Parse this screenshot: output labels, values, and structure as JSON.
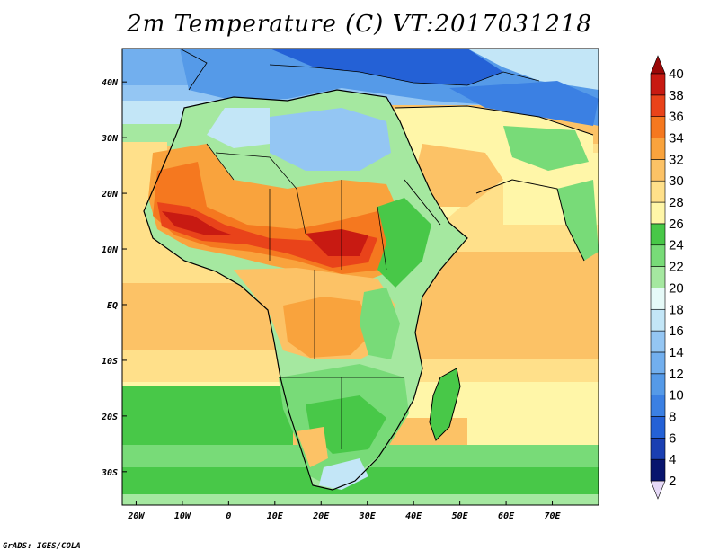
{
  "title": "2m Temperature (C) VT:2017031218",
  "credit": "GrADS: IGES/COLA",
  "map": {
    "lon_range": [
      -23,
      80
    ],
    "lat_range": [
      -36,
      46
    ],
    "x_ticks": [
      {
        "lon": -20,
        "label": "20W"
      },
      {
        "lon": -10,
        "label": "10W"
      },
      {
        "lon": 0,
        "label": "0"
      },
      {
        "lon": 10,
        "label": "10E"
      },
      {
        "lon": 20,
        "label": "20E"
      },
      {
        "lon": 30,
        "label": "30E"
      },
      {
        "lon": 40,
        "label": "40E"
      },
      {
        "lon": 50,
        "label": "50E"
      },
      {
        "lon": 60,
        "label": "60E"
      },
      {
        "lon": 70,
        "label": "70E"
      }
    ],
    "y_ticks": [
      {
        "lat": 40,
        "label": "40N"
      },
      {
        "lat": 30,
        "label": "30N"
      },
      {
        "lat": 20,
        "label": "20N"
      },
      {
        "lat": 10,
        "label": "10N"
      },
      {
        "lat": 0,
        "label": "EQ"
      },
      {
        "lat": -10,
        "label": "10S"
      },
      {
        "lat": -20,
        "label": "20S"
      },
      {
        "lat": -30,
        "label": "30S"
      }
    ]
  },
  "colorbar": {
    "levels": [
      "2",
      "4",
      "6",
      "8",
      "10",
      "12",
      "14",
      "16",
      "18",
      "20",
      "22",
      "24",
      "26",
      "28",
      "30",
      "32",
      "34",
      "36",
      "38",
      "40"
    ],
    "colors": [
      "#e6d9f7",
      "#08156e",
      "#1a3fb2",
      "#2461d6",
      "#3b80e3",
      "#559ae8",
      "#72afee",
      "#94c6f3",
      "#c3e6f7",
      "#e6faf8",
      "#a5e8a0",
      "#78db78",
      "#48c848",
      "#fff6a8",
      "#ffe08a",
      "#fcc266",
      "#f9a33d",
      "#f5781f",
      "#e9431a",
      "#c81a12",
      "#9a0808"
    ]
  }
}
